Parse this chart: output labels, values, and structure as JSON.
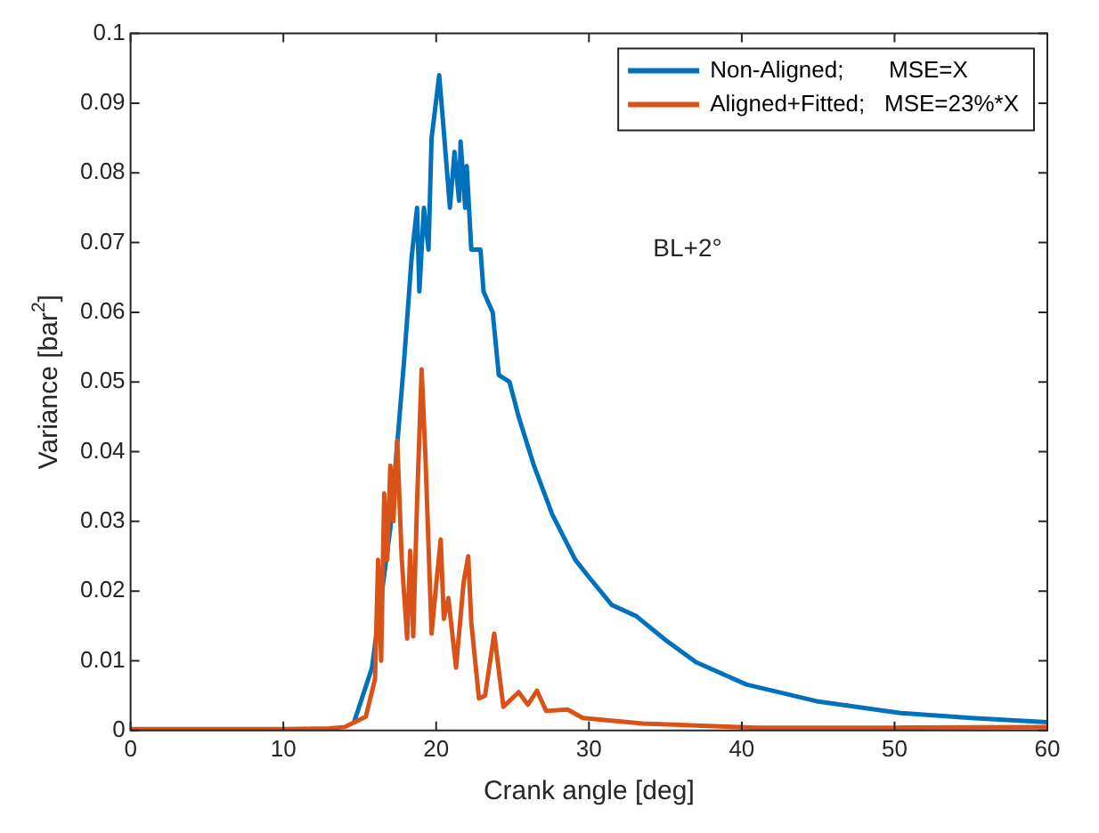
{
  "chart_data": {
    "type": "line",
    "xlabel": "Crank angle [deg]",
    "ylabel": "Variance [bar$^{2}$]",
    "xlim": [
      0,
      60
    ],
    "xticks": [
      0,
      10,
      20,
      30,
      40,
      50,
      60
    ],
    "ylim": [
      0,
      0.1
    ],
    "yticks": [
      0,
      0.01,
      0.02,
      0.03,
      0.04,
      0.05,
      0.06,
      0.07,
      0.08,
      0.09,
      0.1
    ],
    "grid": false,
    "legend": "top right",
    "marker": "none",
    "line_style": "solid",
    "annotations": [
      "BL+2°"
    ],
    "series": [
      {
        "name": "Non-Aligned;       MSE=X",
        "color": "#0072bd",
        "x": [
          14.6,
          15.2,
          15.8,
          17.0,
          17.9,
          18.4,
          18.75,
          18.9,
          19.2,
          19.5,
          19.7,
          20.2,
          20.5,
          20.9,
          21.2,
          21.5,
          21.6,
          21.9,
          22.0,
          22.3,
          22.9,
          23.1,
          23.7,
          24.1,
          24.8,
          25.4,
          26.4,
          27.6,
          29.1,
          30.0,
          31.5,
          33.1,
          35.0,
          37.0,
          40.3,
          44.9,
          50.4,
          55.0,
          60
        ],
        "values": [
          0.001,
          0.005,
          0.009,
          0.029,
          0.053,
          0.068,
          0.075,
          0.063,
          0.075,
          0.069,
          0.085,
          0.094,
          0.086,
          0.075,
          0.083,
          0.076,
          0.0845,
          0.075,
          0.081,
          0.069,
          0.069,
          0.063,
          0.06,
          0.051,
          0.05,
          0.045,
          0.038,
          0.031,
          0.0245,
          0.022,
          0.018,
          0.0164,
          0.013,
          0.0098,
          0.0066,
          0.0042,
          0.0025,
          0.0018,
          0.0012
        ]
      },
      {
        "name": "Aligned+Fitted;   MSE=23%*X",
        "color": "#d95319",
        "x": [
          0,
          5,
          10,
          13,
          14,
          15.4,
          16.0,
          16.2,
          16.4,
          16.6,
          16.8,
          17.0,
          17.2,
          17.45,
          17.75,
          18.1,
          18.3,
          18.5,
          18.75,
          19.05,
          19.3,
          19.7,
          20.05,
          20.3,
          20.5,
          20.8,
          21.3,
          21.8,
          22.1,
          22.3,
          22.8,
          23.2,
          23.8,
          24.4,
          25.4,
          26.0,
          26.6,
          27.2,
          28.6,
          29.6,
          33.5,
          41,
          50,
          60
        ],
        "values": [
          0.0002,
          0.0002,
          0.0002,
          0.0003,
          0.0005,
          0.002,
          0.0074,
          0.0245,
          0.01,
          0.034,
          0.0245,
          0.038,
          0.03,
          0.0416,
          0.0245,
          0.0132,
          0.0258,
          0.0135,
          0.0327,
          0.0518,
          0.0392,
          0.0139,
          0.022,
          0.0274,
          0.016,
          0.019,
          0.009,
          0.0213,
          0.025,
          0.0155,
          0.0046,
          0.005,
          0.0139,
          0.0034,
          0.0055,
          0.0037,
          0.0057,
          0.0028,
          0.003,
          0.0018,
          0.001,
          0.0004,
          0.0004,
          0.0005
        ]
      }
    ]
  }
}
